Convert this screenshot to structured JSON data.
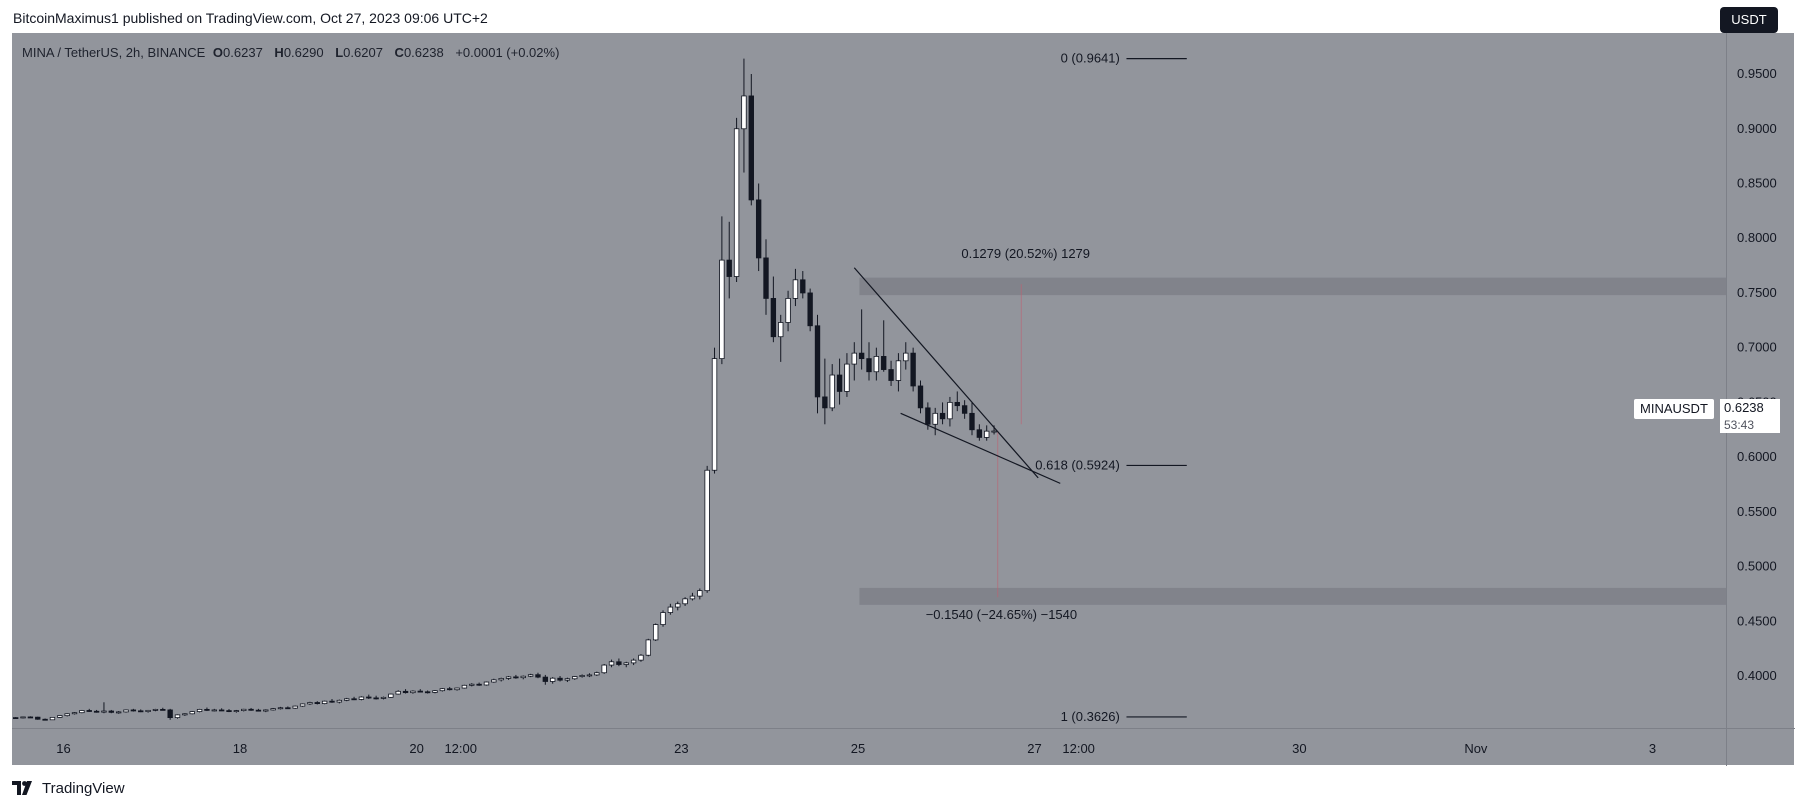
{
  "header": {
    "published": "BitcoinMaximus1 published on TradingView.com, Oct 27, 2023 09:06 UTC+2"
  },
  "legend": {
    "symbol": "MINA / TetherUS, 2h, BINANCE",
    "open_label": "O",
    "open": "0.6237",
    "high_label": "H",
    "high": "0.6290",
    "low_label": "L",
    "low": "0.6207",
    "close_label": "C",
    "close": "0.6238",
    "change": "+0.0001 (+0.02%)"
  },
  "currency_button": "USDT",
  "symbol_tag": "MINAUSDT",
  "last_price": {
    "value": "0.6238",
    "countdown": "53:43"
  },
  "footer": {
    "brand": "TradingView"
  },
  "colors": {
    "background": "#92959c",
    "bullish": "#ffffff",
    "bearish": "#131722",
    "wick": "#131722",
    "zone": "#7b7e85",
    "line": "#131722",
    "measure": "#c06070"
  },
  "chart_data": {
    "type": "candlestick",
    "title": "MINA / TetherUS, 2h, BINANCE",
    "ylim": [
      0.3525,
      0.9875
    ],
    "y_ticks": [
      0.4,
      0.45,
      0.5,
      0.55,
      0.6,
      0.65,
      0.7,
      0.75,
      0.8,
      0.85,
      0.9,
      0.95
    ],
    "y_tick_labels": [
      "0.4000",
      "0.4500",
      "0.5000",
      "0.5500",
      "0.6000",
      "0.6500",
      "0.7000",
      "0.7500",
      "0.8000",
      "0.8500",
      "0.9000",
      "0.9500"
    ],
    "x_ticks": [
      {
        "label": "16",
        "bar": 7
      },
      {
        "label": "18",
        "bar": 31
      },
      {
        "label": "20",
        "bar": 55
      },
      {
        "label": "12:00",
        "bar": 61
      },
      {
        "label": "23",
        "bar": 91
      },
      {
        "label": "25",
        "bar": 115
      },
      {
        "label": "27",
        "bar": 139
      },
      {
        "label": "12:00",
        "bar": 145
      },
      {
        "label": "30",
        "bar": 175
      },
      {
        "label": "Nov",
        "bar": 199
      },
      {
        "label": "3",
        "bar": 223
      }
    ],
    "bars_left": 0,
    "bars_right": 233,
    "candles": [
      [
        0.362,
        0.3625,
        0.361,
        0.3618
      ],
      [
        0.3618,
        0.363,
        0.3612,
        0.3626
      ],
      [
        0.3626,
        0.3632,
        0.362,
        0.3624
      ],
      [
        0.3624,
        0.3628,
        0.36,
        0.3605
      ],
      [
        0.3605,
        0.3612,
        0.3595,
        0.36
      ],
      [
        0.36,
        0.3625,
        0.3598,
        0.3622
      ],
      [
        0.3622,
        0.364,
        0.3618,
        0.3638
      ],
      [
        0.3638,
        0.366,
        0.363,
        0.3655
      ],
      [
        0.3655,
        0.367,
        0.3648,
        0.3665
      ],
      [
        0.3665,
        0.369,
        0.366,
        0.3685
      ],
      [
        0.3685,
        0.37,
        0.3672,
        0.3678
      ],
      [
        0.3678,
        0.369,
        0.3665,
        0.367
      ],
      [
        0.367,
        0.376,
        0.366,
        0.368
      ],
      [
        0.368,
        0.369,
        0.366,
        0.3668
      ],
      [
        0.3668,
        0.368,
        0.3655,
        0.3672
      ],
      [
        0.3672,
        0.3695,
        0.3665,
        0.369
      ],
      [
        0.369,
        0.37,
        0.3675,
        0.3682
      ],
      [
        0.3682,
        0.3695,
        0.367,
        0.3675
      ],
      [
        0.3675,
        0.369,
        0.3665,
        0.3686
      ],
      [
        0.3686,
        0.37,
        0.3678,
        0.3695
      ],
      [
        0.3695,
        0.371,
        0.3685,
        0.369
      ],
      [
        0.369,
        0.37,
        0.36,
        0.362
      ],
      [
        0.362,
        0.365,
        0.361,
        0.3645
      ],
      [
        0.3645,
        0.366,
        0.3635,
        0.3655
      ],
      [
        0.3655,
        0.368,
        0.365,
        0.3675
      ],
      [
        0.3675,
        0.37,
        0.3668,
        0.3695
      ],
      [
        0.3695,
        0.3712,
        0.368,
        0.3686
      ],
      [
        0.3686,
        0.37,
        0.3676,
        0.369
      ],
      [
        0.369,
        0.3705,
        0.368,
        0.3684
      ],
      [
        0.3684,
        0.3698,
        0.367,
        0.3678
      ],
      [
        0.3678,
        0.369,
        0.3665,
        0.3684
      ],
      [
        0.3684,
        0.37,
        0.3676,
        0.3696
      ],
      [
        0.3696,
        0.3708,
        0.3682,
        0.3688
      ],
      [
        0.3688,
        0.37,
        0.3676,
        0.368
      ],
      [
        0.368,
        0.3696,
        0.367,
        0.369
      ],
      [
        0.369,
        0.3708,
        0.3684,
        0.3702
      ],
      [
        0.3702,
        0.3718,
        0.3694,
        0.371
      ],
      [
        0.371,
        0.3722,
        0.37,
        0.3706
      ],
      [
        0.3706,
        0.373,
        0.37,
        0.3725
      ],
      [
        0.3725,
        0.375,
        0.3718,
        0.3745
      ],
      [
        0.3745,
        0.3765,
        0.3735,
        0.3758
      ],
      [
        0.3758,
        0.377,
        0.374,
        0.3748
      ],
      [
        0.3748,
        0.3775,
        0.3742,
        0.377
      ],
      [
        0.377,
        0.379,
        0.3755,
        0.3762
      ],
      [
        0.3762,
        0.3785,
        0.375,
        0.3778
      ],
      [
        0.3778,
        0.38,
        0.377,
        0.3792
      ],
      [
        0.3792,
        0.381,
        0.378,
        0.3786
      ],
      [
        0.3786,
        0.3815,
        0.3778,
        0.3808
      ],
      [
        0.3808,
        0.383,
        0.379,
        0.38
      ],
      [
        0.38,
        0.382,
        0.3785,
        0.3795
      ],
      [
        0.3795,
        0.3812,
        0.3786,
        0.3805
      ],
      [
        0.3805,
        0.384,
        0.38,
        0.3835
      ],
      [
        0.3835,
        0.387,
        0.383,
        0.386
      ],
      [
        0.386,
        0.388,
        0.384,
        0.3848
      ],
      [
        0.3848,
        0.387,
        0.3838,
        0.3862
      ],
      [
        0.3862,
        0.388,
        0.385,
        0.3856
      ],
      [
        0.3856,
        0.3868,
        0.384,
        0.385
      ],
      [
        0.385,
        0.3872,
        0.3842,
        0.3866
      ],
      [
        0.3866,
        0.389,
        0.3858,
        0.3884
      ],
      [
        0.3884,
        0.39,
        0.3868,
        0.3875
      ],
      [
        0.3875,
        0.3895,
        0.3866,
        0.389
      ],
      [
        0.389,
        0.392,
        0.3885,
        0.3915
      ],
      [
        0.3915,
        0.3935,
        0.3905,
        0.3925
      ],
      [
        0.3925,
        0.394,
        0.391,
        0.3918
      ],
      [
        0.3918,
        0.395,
        0.3912,
        0.3945
      ],
      [
        0.3945,
        0.3975,
        0.3938,
        0.3965
      ],
      [
        0.3965,
        0.3985,
        0.395,
        0.3978
      ],
      [
        0.3978,
        0.4,
        0.3965,
        0.3992
      ],
      [
        0.3992,
        0.401,
        0.3975,
        0.3985
      ],
      [
        0.3985,
        0.4005,
        0.397,
        0.3998
      ],
      [
        0.3998,
        0.402,
        0.399,
        0.4012
      ],
      [
        0.4012,
        0.403,
        0.398,
        0.399
      ],
      [
        0.399,
        0.401,
        0.392,
        0.395
      ],
      [
        0.395,
        0.399,
        0.393,
        0.398
      ],
      [
        0.398,
        0.4,
        0.395,
        0.3962
      ],
      [
        0.3962,
        0.3985,
        0.3945,
        0.3975
      ],
      [
        0.3975,
        0.4,
        0.3965,
        0.3995
      ],
      [
        0.3995,
        0.4015,
        0.3985,
        0.4005
      ],
      [
        0.4005,
        0.4025,
        0.399,
        0.401
      ],
      [
        0.401,
        0.404,
        0.4,
        0.403
      ],
      [
        0.403,
        0.411,
        0.402,
        0.41
      ],
      [
        0.41,
        0.415,
        0.408,
        0.413
      ],
      [
        0.413,
        0.416,
        0.409,
        0.4105
      ],
      [
        0.4105,
        0.413,
        0.408,
        0.412
      ],
      [
        0.412,
        0.416,
        0.41,
        0.4145
      ],
      [
        0.4145,
        0.42,
        0.413,
        0.419
      ],
      [
        0.419,
        0.434,
        0.418,
        0.433
      ],
      [
        0.433,
        0.448,
        0.432,
        0.447
      ],
      [
        0.447,
        0.46,
        0.445,
        0.458
      ],
      [
        0.458,
        0.466,
        0.456,
        0.463
      ],
      [
        0.463,
        0.468,
        0.46,
        0.466
      ],
      [
        0.466,
        0.472,
        0.464,
        0.4705
      ],
      [
        0.4705,
        0.476,
        0.469,
        0.473
      ],
      [
        0.473,
        0.48,
        0.47,
        0.478
      ],
      [
        0.478,
        0.592,
        0.476,
        0.588
      ],
      [
        0.588,
        0.7,
        0.585,
        0.69
      ],
      [
        0.69,
        0.82,
        0.685,
        0.78
      ],
      [
        0.78,
        0.815,
        0.745,
        0.765
      ],
      [
        0.765,
        0.91,
        0.76,
        0.9
      ],
      [
        0.9,
        0.9641,
        0.86,
        0.93
      ],
      [
        0.93,
        0.95,
        0.83,
        0.835
      ],
      [
        0.835,
        0.85,
        0.77,
        0.782
      ],
      [
        0.782,
        0.799,
        0.73,
        0.745
      ],
      [
        0.745,
        0.765,
        0.705,
        0.71
      ],
      [
        0.71,
        0.73,
        0.687,
        0.723
      ],
      [
        0.723,
        0.752,
        0.715,
        0.745
      ],
      [
        0.745,
        0.772,
        0.738,
        0.762
      ],
      [
        0.762,
        0.77,
        0.745,
        0.75
      ],
      [
        0.75,
        0.754,
        0.715,
        0.72
      ],
      [
        0.72,
        0.73,
        0.64,
        0.655
      ],
      [
        0.655,
        0.69,
        0.63,
        0.645
      ],
      [
        0.645,
        0.685,
        0.642,
        0.675
      ],
      [
        0.675,
        0.69,
        0.648,
        0.66
      ],
      [
        0.66,
        0.695,
        0.655,
        0.685
      ],
      [
        0.685,
        0.705,
        0.67,
        0.695
      ],
      [
        0.695,
        0.735,
        0.68,
        0.69
      ],
      [
        0.69,
        0.705,
        0.67,
        0.678
      ],
      [
        0.678,
        0.7,
        0.67,
        0.692
      ],
      [
        0.692,
        0.725,
        0.678,
        0.68
      ],
      [
        0.68,
        0.688,
        0.665,
        0.67
      ],
      [
        0.67,
        0.695,
        0.66,
        0.688
      ],
      [
        0.688,
        0.705,
        0.68,
        0.695
      ],
      [
        0.695,
        0.7,
        0.66,
        0.665
      ],
      [
        0.665,
        0.67,
        0.64,
        0.645
      ],
      [
        0.645,
        0.65,
        0.625,
        0.63
      ],
      [
        0.63,
        0.645,
        0.62,
        0.64
      ],
      [
        0.64,
        0.65,
        0.63,
        0.635
      ],
      [
        0.635,
        0.655,
        0.628,
        0.65
      ],
      [
        0.65,
        0.66,
        0.642,
        0.647
      ],
      [
        0.647,
        0.652,
        0.635,
        0.64
      ],
      [
        0.64,
        0.65,
        0.62,
        0.625
      ],
      [
        0.625,
        0.63,
        0.615,
        0.618
      ],
      [
        0.618,
        0.629,
        0.615,
        0.6237
      ],
      [
        0.6237,
        0.629,
        0.6207,
        0.6238
      ]
    ],
    "fibonacci": [
      {
        "label": "0 (0.9641)",
        "price": 0.9641
      },
      {
        "label": "0.618 (0.5924)",
        "price": 0.5924
      },
      {
        "label": "1 (0.3626)",
        "price": 0.3626
      }
    ],
    "zones": [
      {
        "from": 0.748,
        "to": 0.764
      },
      {
        "from": 0.465,
        "to": 0.4805
      }
    ],
    "trendlines": [
      {
        "from_bar": 114.5,
        "from_price": 0.773,
        "to_bar": 139.5,
        "to_price": 0.581
      },
      {
        "from_bar": 120.8,
        "from_price": 0.64,
        "to_bar": 142.5,
        "to_price": 0.576
      }
    ],
    "measures": [
      {
        "label": "0.1279 (20.52%) 1279",
        "bar": 137.2,
        "from_price": 0.63,
        "to_price": 0.758
      },
      {
        "label": "−0.1540 (−24.65%) −1540",
        "bar": 134.0,
        "from_price": 0.472,
        "to_price": 0.624
      }
    ]
  }
}
